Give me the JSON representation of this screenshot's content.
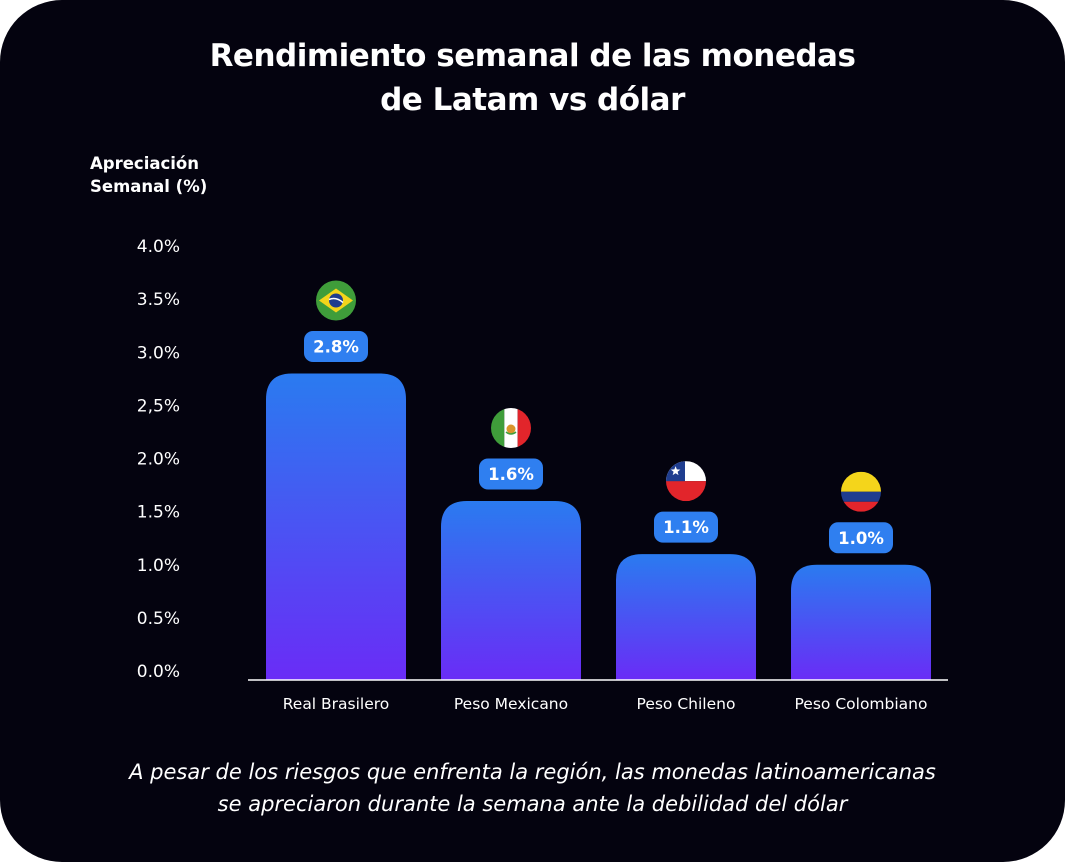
{
  "title_lines": [
    "Rendimiento semanal de las monedas",
    "de Latam vs dólar"
  ],
  "caption_lines": [
    "A pesar de los riesgos que enfrenta la región, las monedas latinoamericanas",
    "se apreciaron durante la semana ante la debilidad del dólar"
  ],
  "colors": {
    "background": "#04030f",
    "bar_top": "#2a7bf0",
    "bar_bottom": "#6a2cf6",
    "label_pill": "#2f7ff0",
    "text": "#ffffff"
  },
  "chart_data": {
    "type": "bar",
    "ylabel_lines": [
      "Apreciación",
      "Semanal (%)"
    ],
    "ylim": [
      0,
      4.0
    ],
    "yticks": [
      0.0,
      0.5,
      1.0,
      1.5,
      2.0,
      2.5,
      3.0,
      3.5,
      4.0
    ],
    "ytick_labels": [
      "0.0%",
      "0.5%",
      "1.0%",
      "1.5%",
      "2.0%",
      "2,5%",
      "3.0%",
      "3.5%",
      "4.0%"
    ],
    "grid": false,
    "categories": [
      "Real Brasilero",
      "Peso Mexicano",
      "Peso Chileno",
      "Peso Colombiano"
    ],
    "values": [
      2.8,
      1.6,
      1.1,
      1.0
    ],
    "value_labels": [
      "2.8%",
      "1.6%",
      "1.1%",
      "1.0%"
    ],
    "flag_icons": [
      "brazil-flag-icon",
      "mexico-flag-icon",
      "chile-flag-icon",
      "colombia-flag-icon"
    ]
  }
}
